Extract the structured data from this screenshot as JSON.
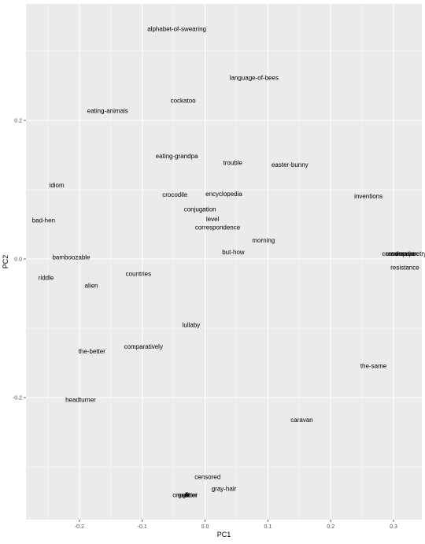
{
  "chart_data": {
    "type": "scatter",
    "title": "",
    "xlabel": "PC1",
    "ylabel": "PC2",
    "xlim": [
      -0.285,
      0.345
    ],
    "ylim": [
      -0.376,
      0.368
    ],
    "x_ticks": [
      -0.2,
      -0.1,
      0.0,
      0.1,
      0.2,
      0.3
    ],
    "x_tick_labels": [
      "-0.2",
      "-0.1",
      "0.0",
      "0.1",
      "0.2",
      "0.3"
    ],
    "y_ticks": [
      0.2,
      0.0,
      -0.2
    ],
    "y_tick_labels": [
      "0.2",
      "0.0",
      "-0.2"
    ],
    "grid": true,
    "background": "#ebebeb",
    "grid_color": "#ffffff",
    "label_color": "#000000",
    "points": [
      {
        "label": "alphabet-of-swearing",
        "x": -0.045,
        "y": 0.332
      },
      {
        "label": "language-of-bees",
        "x": 0.078,
        "y": 0.262
      },
      {
        "label": "cockatoo",
        "x": -0.035,
        "y": 0.229
      },
      {
        "label": "eating-animals",
        "x": -0.155,
        "y": 0.214
      },
      {
        "label": "eating-grandpa",
        "x": -0.045,
        "y": 0.149
      },
      {
        "label": "trouble",
        "x": 0.044,
        "y": 0.139
      },
      {
        "label": "easter-bunny",
        "x": 0.135,
        "y": 0.136
      },
      {
        "label": "idiom",
        "x": -0.236,
        "y": 0.107
      },
      {
        "label": "crocodile",
        "x": -0.048,
        "y": 0.093
      },
      {
        "label": "encyclopedia",
        "x": 0.03,
        "y": 0.094
      },
      {
        "label": "inventions",
        "x": 0.26,
        "y": 0.091
      },
      {
        "label": "conjugation",
        "x": -0.008,
        "y": 0.072
      },
      {
        "label": "bad-hen",
        "x": -0.257,
        "y": 0.056
      },
      {
        "label": "level",
        "x": 0.012,
        "y": 0.058
      },
      {
        "label": "correspondence",
        "x": 0.02,
        "y": 0.046
      },
      {
        "label": "morning",
        "x": 0.093,
        "y": 0.027
      },
      {
        "label": "but-how",
        "x": 0.045,
        "y": 0.01
      },
      {
        "label": "random-poetry",
        "x": 0.32,
        "y": 0.008
      },
      {
        "label": "conversation",
        "x": 0.31,
        "y": 0.008
      },
      {
        "label": "compare",
        "x": 0.315,
        "y": 0.008
      },
      {
        "label": "bamboozable",
        "x": -0.213,
        "y": 0.003
      },
      {
        "label": "resistance",
        "x": 0.318,
        "y": -0.012
      },
      {
        "label": "riddle",
        "x": -0.253,
        "y": -0.027
      },
      {
        "label": "countries",
        "x": -0.106,
        "y": -0.021
      },
      {
        "label": "alien",
        "x": -0.181,
        "y": -0.038
      },
      {
        "label": "lullaby",
        "x": -0.022,
        "y": -0.095
      },
      {
        "label": "comparatively",
        "x": -0.098,
        "y": -0.126
      },
      {
        "label": "the-better",
        "x": -0.18,
        "y": -0.133
      },
      {
        "label": "the-same",
        "x": 0.268,
        "y": -0.154
      },
      {
        "label": "headturner",
        "x": -0.198,
        "y": -0.203
      },
      {
        "label": "caravan",
        "x": 0.154,
        "y": -0.232
      },
      {
        "label": "censored",
        "x": 0.004,
        "y": -0.314
      },
      {
        "label": "gray-hair",
        "x": 0.03,
        "y": -0.331
      },
      {
        "label": "one-liner",
        "x": -0.032,
        "y": -0.34
      },
      {
        "label": "guilt",
        "x": -0.034,
        "y": -0.34
      },
      {
        "label": "glitter",
        "x": -0.024,
        "y": -0.34
      }
    ]
  }
}
